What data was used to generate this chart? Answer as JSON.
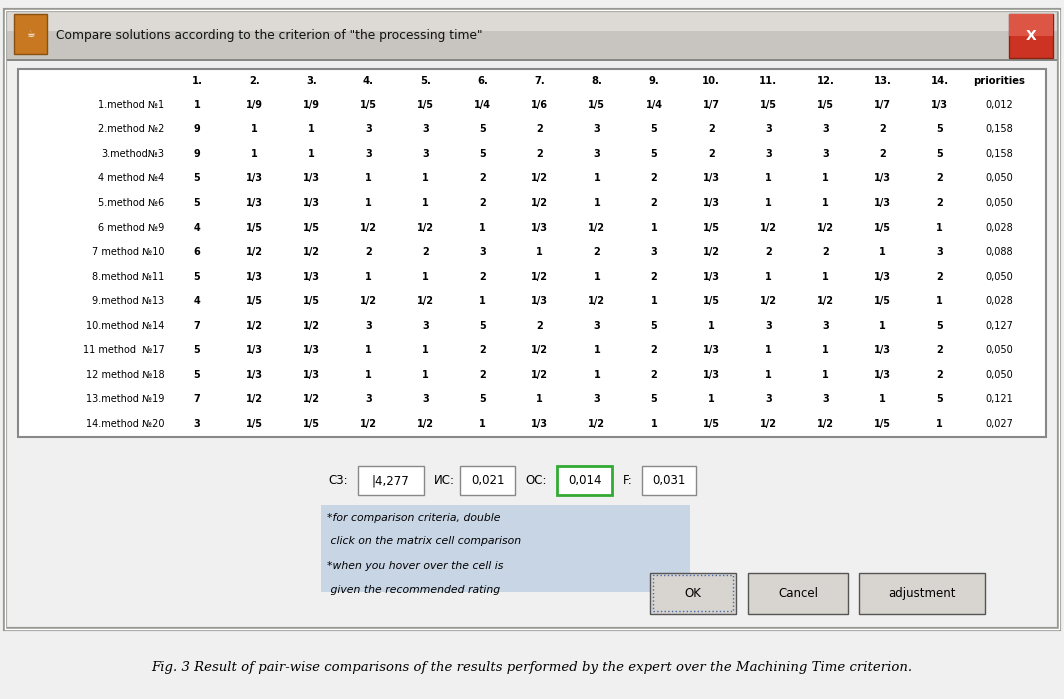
{
  "title": "Compare solutions according to the criterion of \"the processing time\"",
  "figure_caption": "Fig. 3 Result of pair-wise comparisons of the results performed by the expert over the Machining Time criterion.",
  "col_headers": [
    "1.",
    "2.",
    "3.",
    "4.",
    "5.",
    "6.",
    "7.",
    "8.",
    "9.",
    "10.",
    "11.",
    "12.",
    "13.",
    "14.",
    "priorities"
  ],
  "row_labels": [
    "1.method №1",
    "2.method №2",
    "3.method№3",
    "4 method №4",
    "5.method №6",
    "6 method №9",
    "7 method №10",
    "8.method №11",
    "9.method №13",
    "10.method №14",
    "11 method  №17",
    "12 method №18",
    "13.method №19",
    "14.method №20"
  ],
  "table_data": [
    [
      "1",
      "1/9",
      "1/9",
      "1/5",
      "1/5",
      "1/4",
      "1/6",
      "1/5",
      "1/4",
      "1/7",
      "1/5",
      "1/5",
      "1/7",
      "1/3",
      "0,012"
    ],
    [
      "9",
      "1",
      "1",
      "3",
      "3",
      "5",
      "2",
      "3",
      "5",
      "2",
      "3",
      "3",
      "2",
      "5",
      "0,158"
    ],
    [
      "9",
      "1",
      "1",
      "3",
      "3",
      "5",
      "2",
      "3",
      "5",
      "2",
      "3",
      "3",
      "2",
      "5",
      "0,158"
    ],
    [
      "5",
      "1/3",
      "1/3",
      "1",
      "1",
      "2",
      "1/2",
      "1",
      "2",
      "1/3",
      "1",
      "1",
      "1/3",
      "2",
      "0,050"
    ],
    [
      "5",
      "1/3",
      "1/3",
      "1",
      "1",
      "2",
      "1/2",
      "1",
      "2",
      "1/3",
      "1",
      "1",
      "1/3",
      "2",
      "0,050"
    ],
    [
      "4",
      "1/5",
      "1/5",
      "1/2",
      "1/2",
      "1",
      "1/3",
      "1/2",
      "1",
      "1/5",
      "1/2",
      "1/2",
      "1/5",
      "1",
      "0,028"
    ],
    [
      "6",
      "1/2",
      "1/2",
      "2",
      "2",
      "3",
      "1",
      "2",
      "3",
      "1/2",
      "2",
      "2",
      "1",
      "3",
      "0,088"
    ],
    [
      "5",
      "1/3",
      "1/3",
      "1",
      "1",
      "2",
      "1/2",
      "1",
      "2",
      "1/3",
      "1",
      "1",
      "1/3",
      "2",
      "0,050"
    ],
    [
      "4",
      "1/5",
      "1/5",
      "1/2",
      "1/2",
      "1",
      "1/3",
      "1/2",
      "1",
      "1/5",
      "1/2",
      "1/2",
      "1/5",
      "1",
      "0,028"
    ],
    [
      "7",
      "1/2",
      "1/2",
      "3",
      "3",
      "5",
      "2",
      "3",
      "5",
      "1",
      "3",
      "3",
      "1",
      "5",
      "0,127"
    ],
    [
      "5",
      "1/3",
      "1/3",
      "1",
      "1",
      "2",
      "1/2",
      "1",
      "2",
      "1/3",
      "1",
      "1",
      "1/3",
      "2",
      "0,050"
    ],
    [
      "5",
      "1/3",
      "1/3",
      "1",
      "1",
      "2",
      "1/2",
      "1",
      "2",
      "1/3",
      "1",
      "1",
      "1/3",
      "2",
      "0,050"
    ],
    [
      "7",
      "1/2",
      "1/2",
      "3",
      "3",
      "5",
      "1",
      "3",
      "5",
      "1",
      "3",
      "3",
      "1",
      "5",
      "0,121"
    ],
    [
      "3",
      "1/5",
      "1/5",
      "1/2",
      "1/2",
      "1",
      "1/3",
      "1/2",
      "1",
      "1/5",
      "1/2",
      "1/2",
      "1/5",
      "1",
      "0,027"
    ]
  ],
  "green": "#00ff00",
  "dialog_bg": "#d8d5ce",
  "title_bar_start": "#b8b5b0",
  "title_bar_end": "#e8e5e0",
  "white": "#ffffff",
  "black": "#000000",
  "priority_bg": "#e8e8e8",
  "note_bg": "#c8d8e8",
  "btn_bg": "#d0cdc8",
  "ok_border": "#5577aa",
  "thick_row_sep_indices": [
    1,
    3,
    5,
    7,
    9,
    11,
    12,
    13
  ],
  "c3_label": "C3:",
  "c3_val": "|4,277",
  "ic_label": "ИC:",
  "ic_val": "0,021",
  "oc_label": "OC:",
  "oc_val": "0,014",
  "f_label": "F:",
  "f_val": "0,031",
  "note1_line1": "*for comparison criteria, double",
  "note1_line2": " click on the matrix cell comparison",
  "note2_line1": "*when you hover over the cell is",
  "note2_line2": " given the recommended rating",
  "caption": "Fig. 3 Result of pair-wise comparisons of the results performed by the expert over the Machining Time criterion."
}
